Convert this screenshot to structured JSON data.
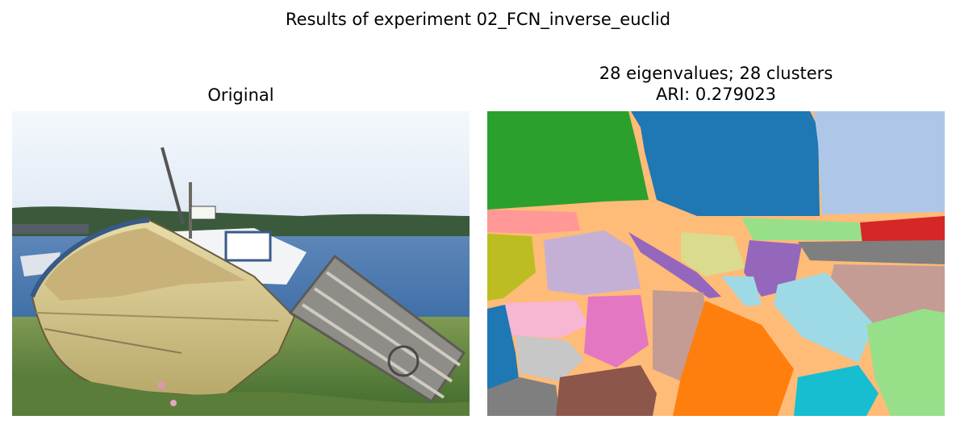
{
  "figure": {
    "suptitle": "Results of experiment 02_FCN_inverse_euclid"
  },
  "chart_data": [
    {
      "type": "image",
      "title": "Original",
      "content": "photograph: old wooden rowboat and lobster trap on grass by the shore, fishing boat and forested coast in background"
    },
    {
      "type": "heatmap",
      "title_line1": "28 eigenvalues; 28 clusters",
      "title_line2": "ARI: 0.279023",
      "eigenvalues": 28,
      "clusters": 28,
      "ari": 0.279023,
      "content": "segmentation label map with 28 color-coded clusters",
      "palette": [
        "#2ca02c",
        "#1f77b4",
        "#aec7e8",
        "#ffbb78",
        "#ff9896",
        "#98df8a",
        "#d62728",
        "#bcbd22",
        "#c5b0d5",
        "#dbdb8d",
        "#9467bd",
        "#7f7f7f",
        "#c49c94",
        "#f7b6d2",
        "#e377c2",
        "#9edae5",
        "#c7c7c7",
        "#8c564b",
        "#ff7f0e",
        "#17becf"
      ]
    }
  ]
}
